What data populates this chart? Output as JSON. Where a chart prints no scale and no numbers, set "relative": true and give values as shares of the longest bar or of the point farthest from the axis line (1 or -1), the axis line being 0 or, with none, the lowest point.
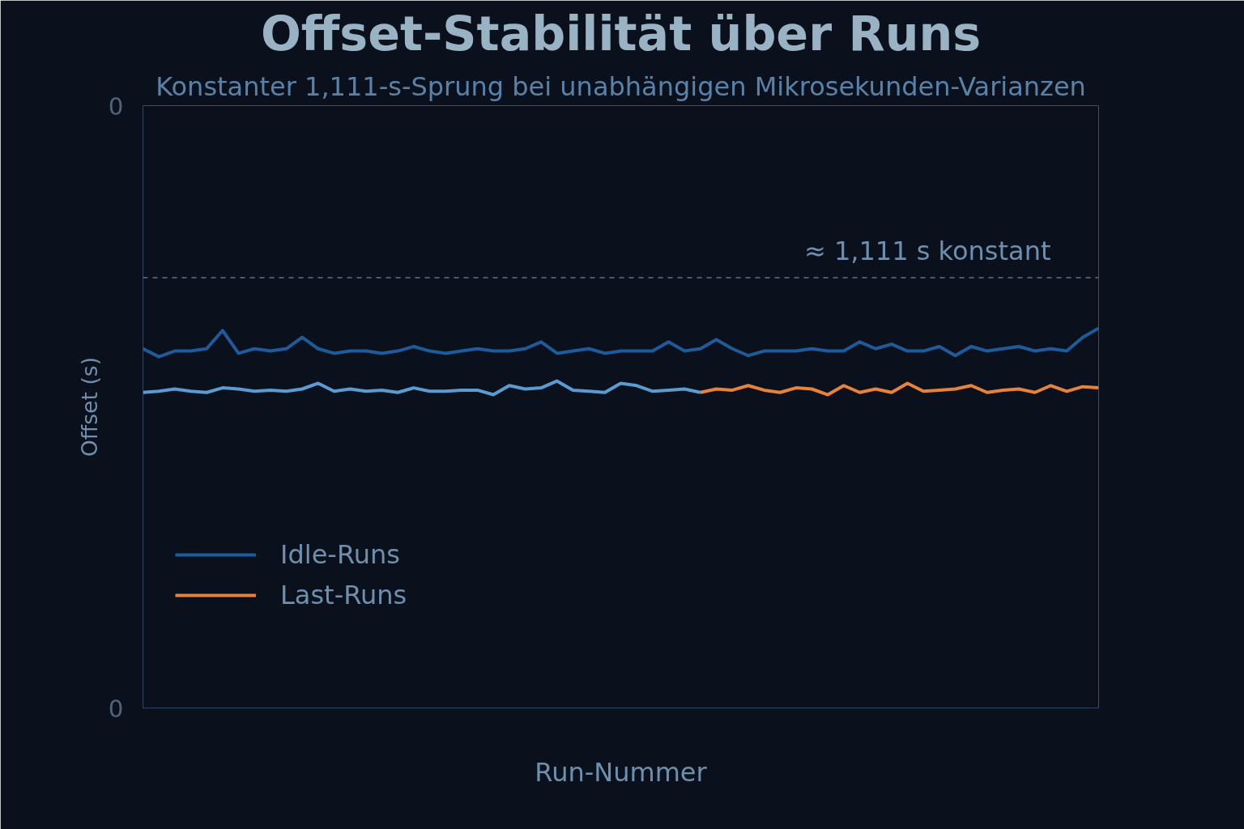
{
  "chart_data": {
    "type": "line",
    "title": "Offset-Stabilität über Runs",
    "subtitle": "Konstanter 1,111-s-Sprung bei unabhängigen Mikrosekunden-Varianzen",
    "xlabel": "Run-Nummer",
    "ylabel": "Offset (s)",
    "relative": true,
    "annotations": [
      "0",
      "0"
    ],
    "categories": [
      null,
      null,
      null,
      null,
      null,
      null,
      null,
      null,
      null,
      null,
      null,
      null,
      null,
      null,
      null,
      null,
      null,
      null,
      null,
      null,
      null,
      null,
      null,
      null,
      null,
      null,
      null,
      null,
      null,
      null,
      null,
      null,
      null,
      null,
      null,
      null,
      null,
      null,
      null,
      null,
      null,
      null,
      null,
      null,
      null,
      null,
      null,
      null,
      null,
      null,
      null,
      null,
      null,
      null,
      null,
      null,
      null,
      null,
      null,
      null,
      null
    ],
    "series": [
      {
        "name": "Idle-Runs",
        "color": "#1f5a9a",
        "values": [
          0.946,
          0.925,
          0.94,
          0.94,
          0.946,
          0.994,
          0.934,
          0.946,
          0.94,
          0.946,
          0.976,
          0.946,
          0.934,
          0.94,
          0.94,
          0.934,
          0.94,
          0.952,
          0.94,
          0.934,
          0.94,
          0.946,
          0.94,
          0.94,
          0.946,
          0.964,
          0.934,
          0.94,
          0.946,
          0.934,
          0.94,
          0.94,
          0.94,
          0.964,
          0.94,
          0.946,
          0.97,
          0.946,
          0.928,
          0.94,
          0.94,
          0.94,
          0.946,
          0.94,
          0.94,
          0.964,
          0.946,
          0.958,
          0.94,
          0.94,
          0.952,
          0.928,
          0.952,
          0.94,
          0.946,
          0.952,
          0.94,
          0.946,
          0.94,
          0.976,
          1.0
        ]
      },
      {
        "color": "#5b9bd1",
        "values": [
          0.831,
          0.834,
          0.84,
          0.834,
          0.831,
          0.843,
          0.84,
          0.834,
          0.837,
          0.834,
          0.84,
          0.855,
          0.834,
          0.84,
          0.834,
          0.837,
          0.831,
          0.843,
          0.834,
          0.834,
          0.837,
          0.837,
          0.825,
          0.849,
          0.84,
          0.843,
          0.861,
          0.837,
          0.834,
          0.831,
          0.855,
          0.849,
          0.834,
          0.837,
          0.84,
          0.831,
          null,
          null,
          null,
          null,
          null,
          null,
          null,
          null,
          null,
          null,
          null,
          null,
          null,
          null,
          null,
          null,
          null,
          null,
          null,
          null,
          null,
          null,
          null,
          null,
          null
        ]
      },
      {
        "name": "Last-Runs",
        "color": "#e8823a",
        "values": [
          null,
          null,
          null,
          null,
          null,
          null,
          null,
          null,
          null,
          null,
          null,
          null,
          null,
          null,
          null,
          null,
          null,
          null,
          null,
          null,
          null,
          null,
          null,
          null,
          null,
          null,
          null,
          null,
          null,
          null,
          null,
          null,
          null,
          null,
          null,
          0.831,
          0.84,
          0.837,
          0.849,
          0.837,
          0.831,
          0.843,
          0.84,
          0.825,
          0.849,
          0.831,
          0.84,
          0.831,
          0.855,
          0.834,
          0.837,
          0.84,
          0.849,
          0.831,
          0.837,
          0.84,
          0.831,
          0.849,
          0.834,
          0.846,
          0.843
        ]
      }
    ],
    "ref_lines": [
      {
        "axis": "y",
        "value": 1.133,
        "label": "≈ 1,111 s konstant",
        "color": "#4a5a70",
        "line_style": "dashed"
      }
    ],
    "legend": "left",
    "line_style": "solid",
    "marker": "none"
  }
}
